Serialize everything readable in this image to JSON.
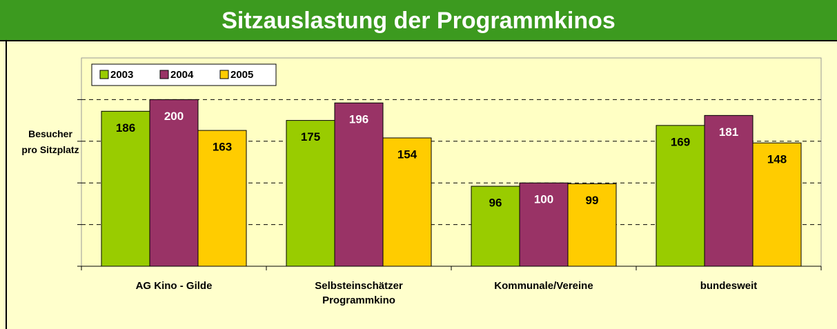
{
  "chart_data": {
    "type": "bar",
    "title": "Sitzauslastung der Programmkinos",
    "y_label": "Besucher pro Sitzplatz",
    "categories": [
      "AG Kino - Gilde",
      "Selbsteinschätzer Programmkino",
      "Kommunale/Vereine",
      "bundesweit"
    ],
    "series": [
      {
        "name": "2003",
        "color": "#99cc00",
        "label_color": "#000000",
        "values": [
          186,
          175,
          96,
          169
        ]
      },
      {
        "name": "2004",
        "color": "#993366",
        "label_color": "#ffffff",
        "values": [
          200,
          196,
          100,
          181
        ]
      },
      {
        "name": "2005",
        "color": "#ffcc00",
        "label_color": "#000000",
        "values": [
          163,
          154,
          99,
          148
        ]
      }
    ],
    "ylim": [
      0,
      250
    ],
    "yticks": [
      0,
      50,
      100,
      150,
      200
    ],
    "grid": true,
    "legend": "top-left"
  }
}
